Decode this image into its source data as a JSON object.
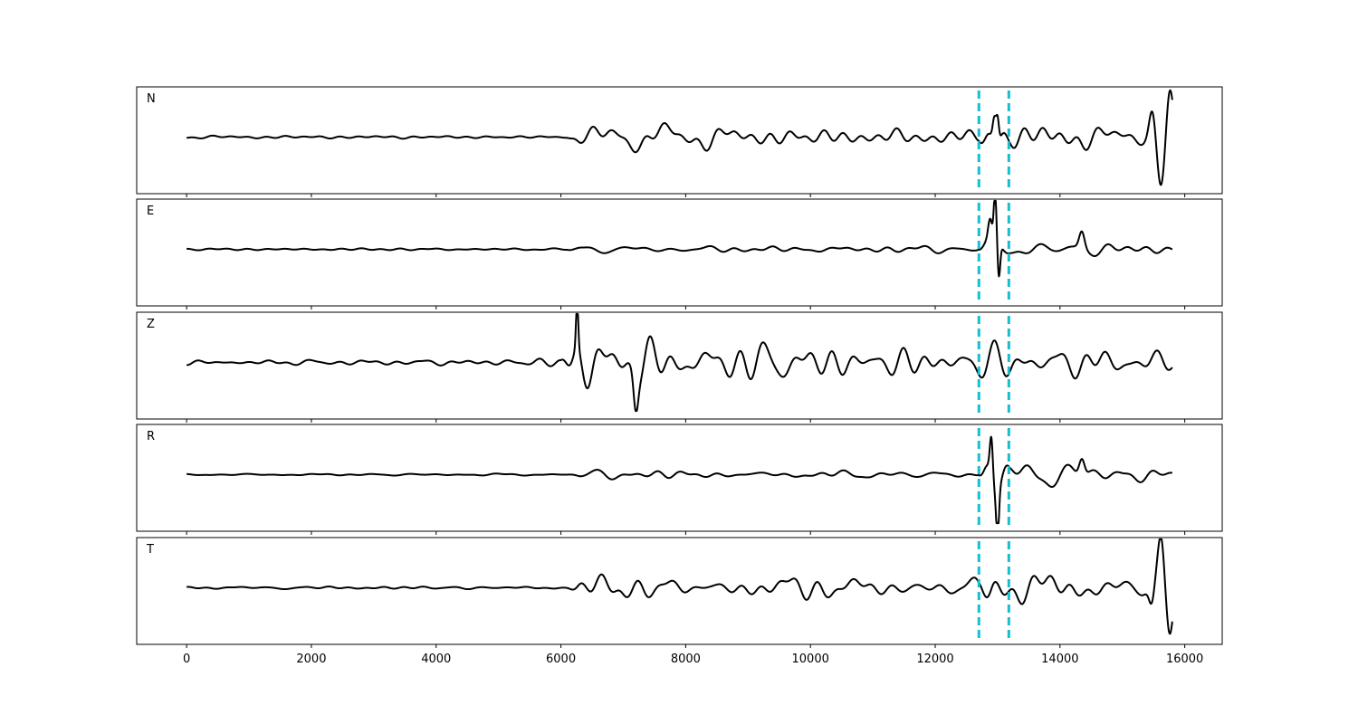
{
  "colors": {
    "trace": "#000000",
    "pick": "#17becf"
  },
  "chart_data": {
    "type": "line",
    "title": "",
    "xlabel": "",
    "ylabel": "",
    "xlim": [
      -800,
      16600
    ],
    "xticks": [
      0,
      2000,
      4000,
      6000,
      8000,
      10000,
      12000,
      14000,
      16000
    ],
    "x_extent": [
      0,
      15800
    ],
    "grid": false,
    "legend": "none",
    "vertical_markers": [
      12700,
      13180
    ],
    "panels": [
      {
        "name": "N",
        "ylim": [
          -1.1,
          1.1
        ],
        "envelope": [
          [
            0,
            0.03
          ],
          [
            6100,
            0.03
          ],
          [
            6300,
            0.2
          ],
          [
            6700,
            0.28
          ],
          [
            7800,
            0.3
          ],
          [
            9000,
            0.22
          ],
          [
            11000,
            0.15
          ],
          [
            12700,
            0.15
          ],
          [
            12900,
            0.6
          ],
          [
            13200,
            0.25
          ],
          [
            14000,
            0.3
          ],
          [
            14600,
            0.25
          ],
          [
            15300,
            0.2
          ]
        ],
        "events": [
          [
            12950,
            0.55,
            40
          ],
          [
            13000,
            0.45,
            30
          ],
          [
            15480,
            0.6,
            70
          ],
          [
            15620,
            -0.95,
            80
          ],
          [
            15760,
            0.85,
            70
          ]
        ]
      },
      {
        "name": "E",
        "ylim": [
          -1.1,
          1.1
        ],
        "envelope": [
          [
            0,
            0.02
          ],
          [
            6100,
            0.02
          ],
          [
            6300,
            0.12
          ],
          [
            7000,
            0.12
          ],
          [
            9000,
            0.08
          ],
          [
            12700,
            0.08
          ],
          [
            12850,
            0.6
          ],
          [
            13200,
            0.2
          ],
          [
            14000,
            0.2
          ],
          [
            14600,
            0.15
          ],
          [
            15800,
            0.08
          ]
        ],
        "events": [
          [
            12880,
            0.35,
            40
          ],
          [
            12960,
            0.95,
            30
          ],
          [
            13020,
            -0.7,
            30
          ],
          [
            14350,
            0.35,
            60
          ]
        ]
      },
      {
        "name": "Z",
        "ylim": [
          -1.1,
          1.1
        ],
        "envelope": [
          [
            0,
            0.05
          ],
          [
            5000,
            0.08
          ],
          [
            6000,
            0.15
          ],
          [
            6250,
            0.95
          ],
          [
            6700,
            0.75
          ],
          [
            7300,
            0.55
          ],
          [
            8000,
            0.4
          ],
          [
            10000,
            0.35
          ],
          [
            12000,
            0.3
          ],
          [
            13500,
            0.3
          ],
          [
            15800,
            0.25
          ]
        ],
        "events": [
          [
            6260,
            0.95,
            25
          ],
          [
            7200,
            -0.65,
            50
          ]
        ]
      },
      {
        "name": "R",
        "ylim": [
          -1.1,
          1.1
        ],
        "envelope": [
          [
            0,
            0.02
          ],
          [
            6100,
            0.02
          ],
          [
            6300,
            0.12
          ],
          [
            8000,
            0.1
          ],
          [
            10000,
            0.07
          ],
          [
            12700,
            0.07
          ],
          [
            12850,
            0.85
          ],
          [
            13200,
            0.25
          ],
          [
            14000,
            0.2
          ],
          [
            14500,
            0.3
          ],
          [
            15800,
            0.08
          ]
        ],
        "events": [
          [
            12900,
            0.9,
            35
          ],
          [
            13000,
            -0.95,
            30
          ],
          [
            14350,
            0.35,
            60
          ]
        ]
      },
      {
        "name": "T",
        "ylim": [
          -1.1,
          1.1
        ],
        "envelope": [
          [
            0,
            0.03
          ],
          [
            6100,
            0.03
          ],
          [
            6300,
            0.18
          ],
          [
            7000,
            0.28
          ],
          [
            8000,
            0.25
          ],
          [
            10000,
            0.2
          ],
          [
            12700,
            0.2
          ],
          [
            12900,
            0.45
          ],
          [
            13200,
            0.3
          ],
          [
            14000,
            0.3
          ],
          [
            15300,
            0.25
          ]
        ],
        "events": [
          [
            15470,
            -0.45,
            60
          ],
          [
            15620,
            1.0,
            70
          ],
          [
            15760,
            -0.85,
            70
          ]
        ]
      }
    ]
  }
}
